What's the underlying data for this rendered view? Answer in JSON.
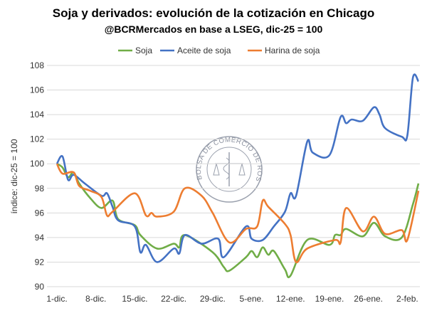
{
  "chart_data": {
    "type": "line",
    "title": "Soja y derivados: evolución de la cotización en Chicago",
    "subtitle": "@BCRMercados en base a LSEG, dic-25 = 100",
    "ylabel": "índice: dic-25 = 100",
    "xlabel": "",
    "ylim": [
      90,
      108
    ],
    "yticks": [
      90,
      92,
      94,
      96,
      98,
      100,
      102,
      104,
      106,
      108
    ],
    "xlim": [
      "2025-12-01",
      "2026-02-04"
    ],
    "xticks": [
      {
        "date": "2025-12-01",
        "label": "1-dic."
      },
      {
        "date": "2025-12-08",
        "label": "8-dic."
      },
      {
        "date": "2025-12-15",
        "label": "15-dic."
      },
      {
        "date": "2025-12-22",
        "label": "22-dic."
      },
      {
        "date": "2025-12-29",
        "label": "29-dic."
      },
      {
        "date": "2026-01-05",
        "label": "5-ene."
      },
      {
        "date": "2026-01-12",
        "label": "12-ene."
      },
      {
        "date": "2026-01-19",
        "label": "19-ene."
      },
      {
        "date": "2026-01-26",
        "label": "26-ene."
      },
      {
        "date": "2026-02-02",
        "label": "2-feb."
      }
    ],
    "grid": "horizontal",
    "legend_position": "top",
    "watermark": "BOLSA DE COMERCIO DE ROSARIO",
    "series": [
      {
        "name": "Soja",
        "color": "#70ad47",
        "points": [
          [
            "2025-12-01",
            100
          ],
          [
            "2025-12-02",
            99.7
          ],
          [
            "2025-12-03",
            98.9
          ],
          [
            "2025-12-04",
            99.3
          ],
          [
            "2025-12-05",
            98.4
          ],
          [
            "2025-12-07",
            97.2
          ],
          [
            "2025-12-09",
            96.4
          ],
          [
            "2025-12-11",
            97.0
          ],
          [
            "2025-12-12",
            95.5
          ],
          [
            "2025-12-15",
            95.0
          ],
          [
            "2025-12-16",
            94.2
          ],
          [
            "2025-12-19",
            93.1
          ],
          [
            "2025-12-22",
            93.5
          ],
          [
            "2025-12-23",
            93.2
          ],
          [
            "2025-12-24",
            94.2
          ],
          [
            "2025-12-29",
            92.8
          ],
          [
            "2025-12-31",
            91.6
          ],
          [
            "2026-01-01",
            91.3
          ],
          [
            "2026-01-04",
            92.4
          ],
          [
            "2026-01-05",
            92.9
          ],
          [
            "2026-01-06",
            92.4
          ],
          [
            "2026-01-07",
            93.2
          ],
          [
            "2026-01-08",
            92.6
          ],
          [
            "2026-01-09",
            92.9
          ],
          [
            "2026-01-11",
            91.4
          ],
          [
            "2026-01-12",
            90.9
          ],
          [
            "2026-01-15",
            93.8
          ],
          [
            "2026-01-19",
            93.4
          ],
          [
            "2026-01-20",
            94.2
          ],
          [
            "2026-01-21",
            94.2
          ],
          [
            "2026-01-22",
            94.7
          ],
          [
            "2026-01-25",
            94.1
          ],
          [
            "2026-01-27",
            95.2
          ],
          [
            "2026-01-29",
            94.1
          ],
          [
            "2026-02-01",
            94.0
          ],
          [
            "2026-02-03",
            96.7
          ],
          [
            "2026-02-04",
            98.4
          ]
        ]
      },
      {
        "name": "Aceite de soja",
        "color": "#4472c4",
        "points": [
          [
            "2025-12-01",
            100
          ],
          [
            "2025-12-02",
            100.6
          ],
          [
            "2025-12-03",
            98.7
          ],
          [
            "2025-12-04",
            99.1
          ],
          [
            "2025-12-06",
            98.4
          ],
          [
            "2025-12-09",
            97.4
          ],
          [
            "2025-12-10",
            97.6
          ],
          [
            "2025-12-11",
            96.5
          ],
          [
            "2025-12-12",
            95.4
          ],
          [
            "2025-12-15",
            94.9
          ],
          [
            "2025-12-16",
            92.8
          ],
          [
            "2025-12-17",
            93.4
          ],
          [
            "2025-12-19",
            92.0
          ],
          [
            "2025-12-22",
            93.1
          ],
          [
            "2025-12-23",
            92.7
          ],
          [
            "2025-12-24",
            94.2
          ],
          [
            "2025-12-27",
            93.5
          ],
          [
            "2025-12-30",
            93.9
          ],
          [
            "2025-12-31",
            92.4
          ],
          [
            "2026-01-04",
            94.9
          ],
          [
            "2026-01-05",
            93.9
          ],
          [
            "2026-01-07",
            93.8
          ],
          [
            "2026-01-09",
            94.9
          ],
          [
            "2026-01-11",
            96.1
          ],
          [
            "2026-01-12",
            97.6
          ],
          [
            "2026-01-13",
            97.4
          ],
          [
            "2026-01-15",
            101.8
          ],
          [
            "2026-01-16",
            100.9
          ],
          [
            "2026-01-19",
            100.7
          ],
          [
            "2026-01-21",
            103.8
          ],
          [
            "2026-01-22",
            103.3
          ],
          [
            "2026-01-23",
            103.6
          ],
          [
            "2026-01-25",
            103.5
          ],
          [
            "2026-01-27",
            104.6
          ],
          [
            "2026-01-28",
            104.0
          ],
          [
            "2026-01-29",
            102.9
          ],
          [
            "2026-02-01",
            102.2
          ],
          [
            "2026-02-02",
            102.3
          ],
          [
            "2026-02-03",
            107.0
          ],
          [
            "2026-02-04",
            106.7
          ]
        ]
      },
      {
        "name": "Harina de soja",
        "color": "#ed7d31",
        "points": [
          [
            "2025-12-01",
            100
          ],
          [
            "2025-12-02",
            99.2
          ],
          [
            "2025-12-04",
            99.3
          ],
          [
            "2025-12-05",
            98.2
          ],
          [
            "2025-12-07",
            97.8
          ],
          [
            "2025-12-09",
            97.3
          ],
          [
            "2025-12-10",
            95.8
          ],
          [
            "2025-12-11",
            96.1
          ],
          [
            "2025-12-15",
            97.6
          ],
          [
            "2025-12-17",
            95.8
          ],
          [
            "2025-12-18",
            96.0
          ],
          [
            "2025-12-19",
            95.7
          ],
          [
            "2025-12-22",
            96.1
          ],
          [
            "2025-12-24",
            98.0
          ],
          [
            "2025-12-27",
            97.4
          ],
          [
            "2025-12-29",
            96.0
          ],
          [
            "2026-01-01",
            93.6
          ],
          [
            "2026-01-04",
            94.7
          ],
          [
            "2026-01-06",
            94.9
          ],
          [
            "2026-01-07",
            97.0
          ],
          [
            "2026-01-08",
            96.5
          ],
          [
            "2026-01-11",
            95.1
          ],
          [
            "2026-01-12",
            94.2
          ],
          [
            "2026-01-13",
            92.0
          ],
          [
            "2026-01-15",
            93.1
          ],
          [
            "2026-01-20",
            93.8
          ],
          [
            "2026-01-21",
            93.6
          ],
          [
            "2026-01-22",
            96.4
          ],
          [
            "2026-01-25",
            94.5
          ],
          [
            "2026-01-27",
            95.7
          ],
          [
            "2026-01-29",
            94.3
          ],
          [
            "2026-02-01",
            94.6
          ],
          [
            "2026-02-02",
            93.8
          ],
          [
            "2026-02-04",
            97.8
          ]
        ]
      }
    ]
  }
}
